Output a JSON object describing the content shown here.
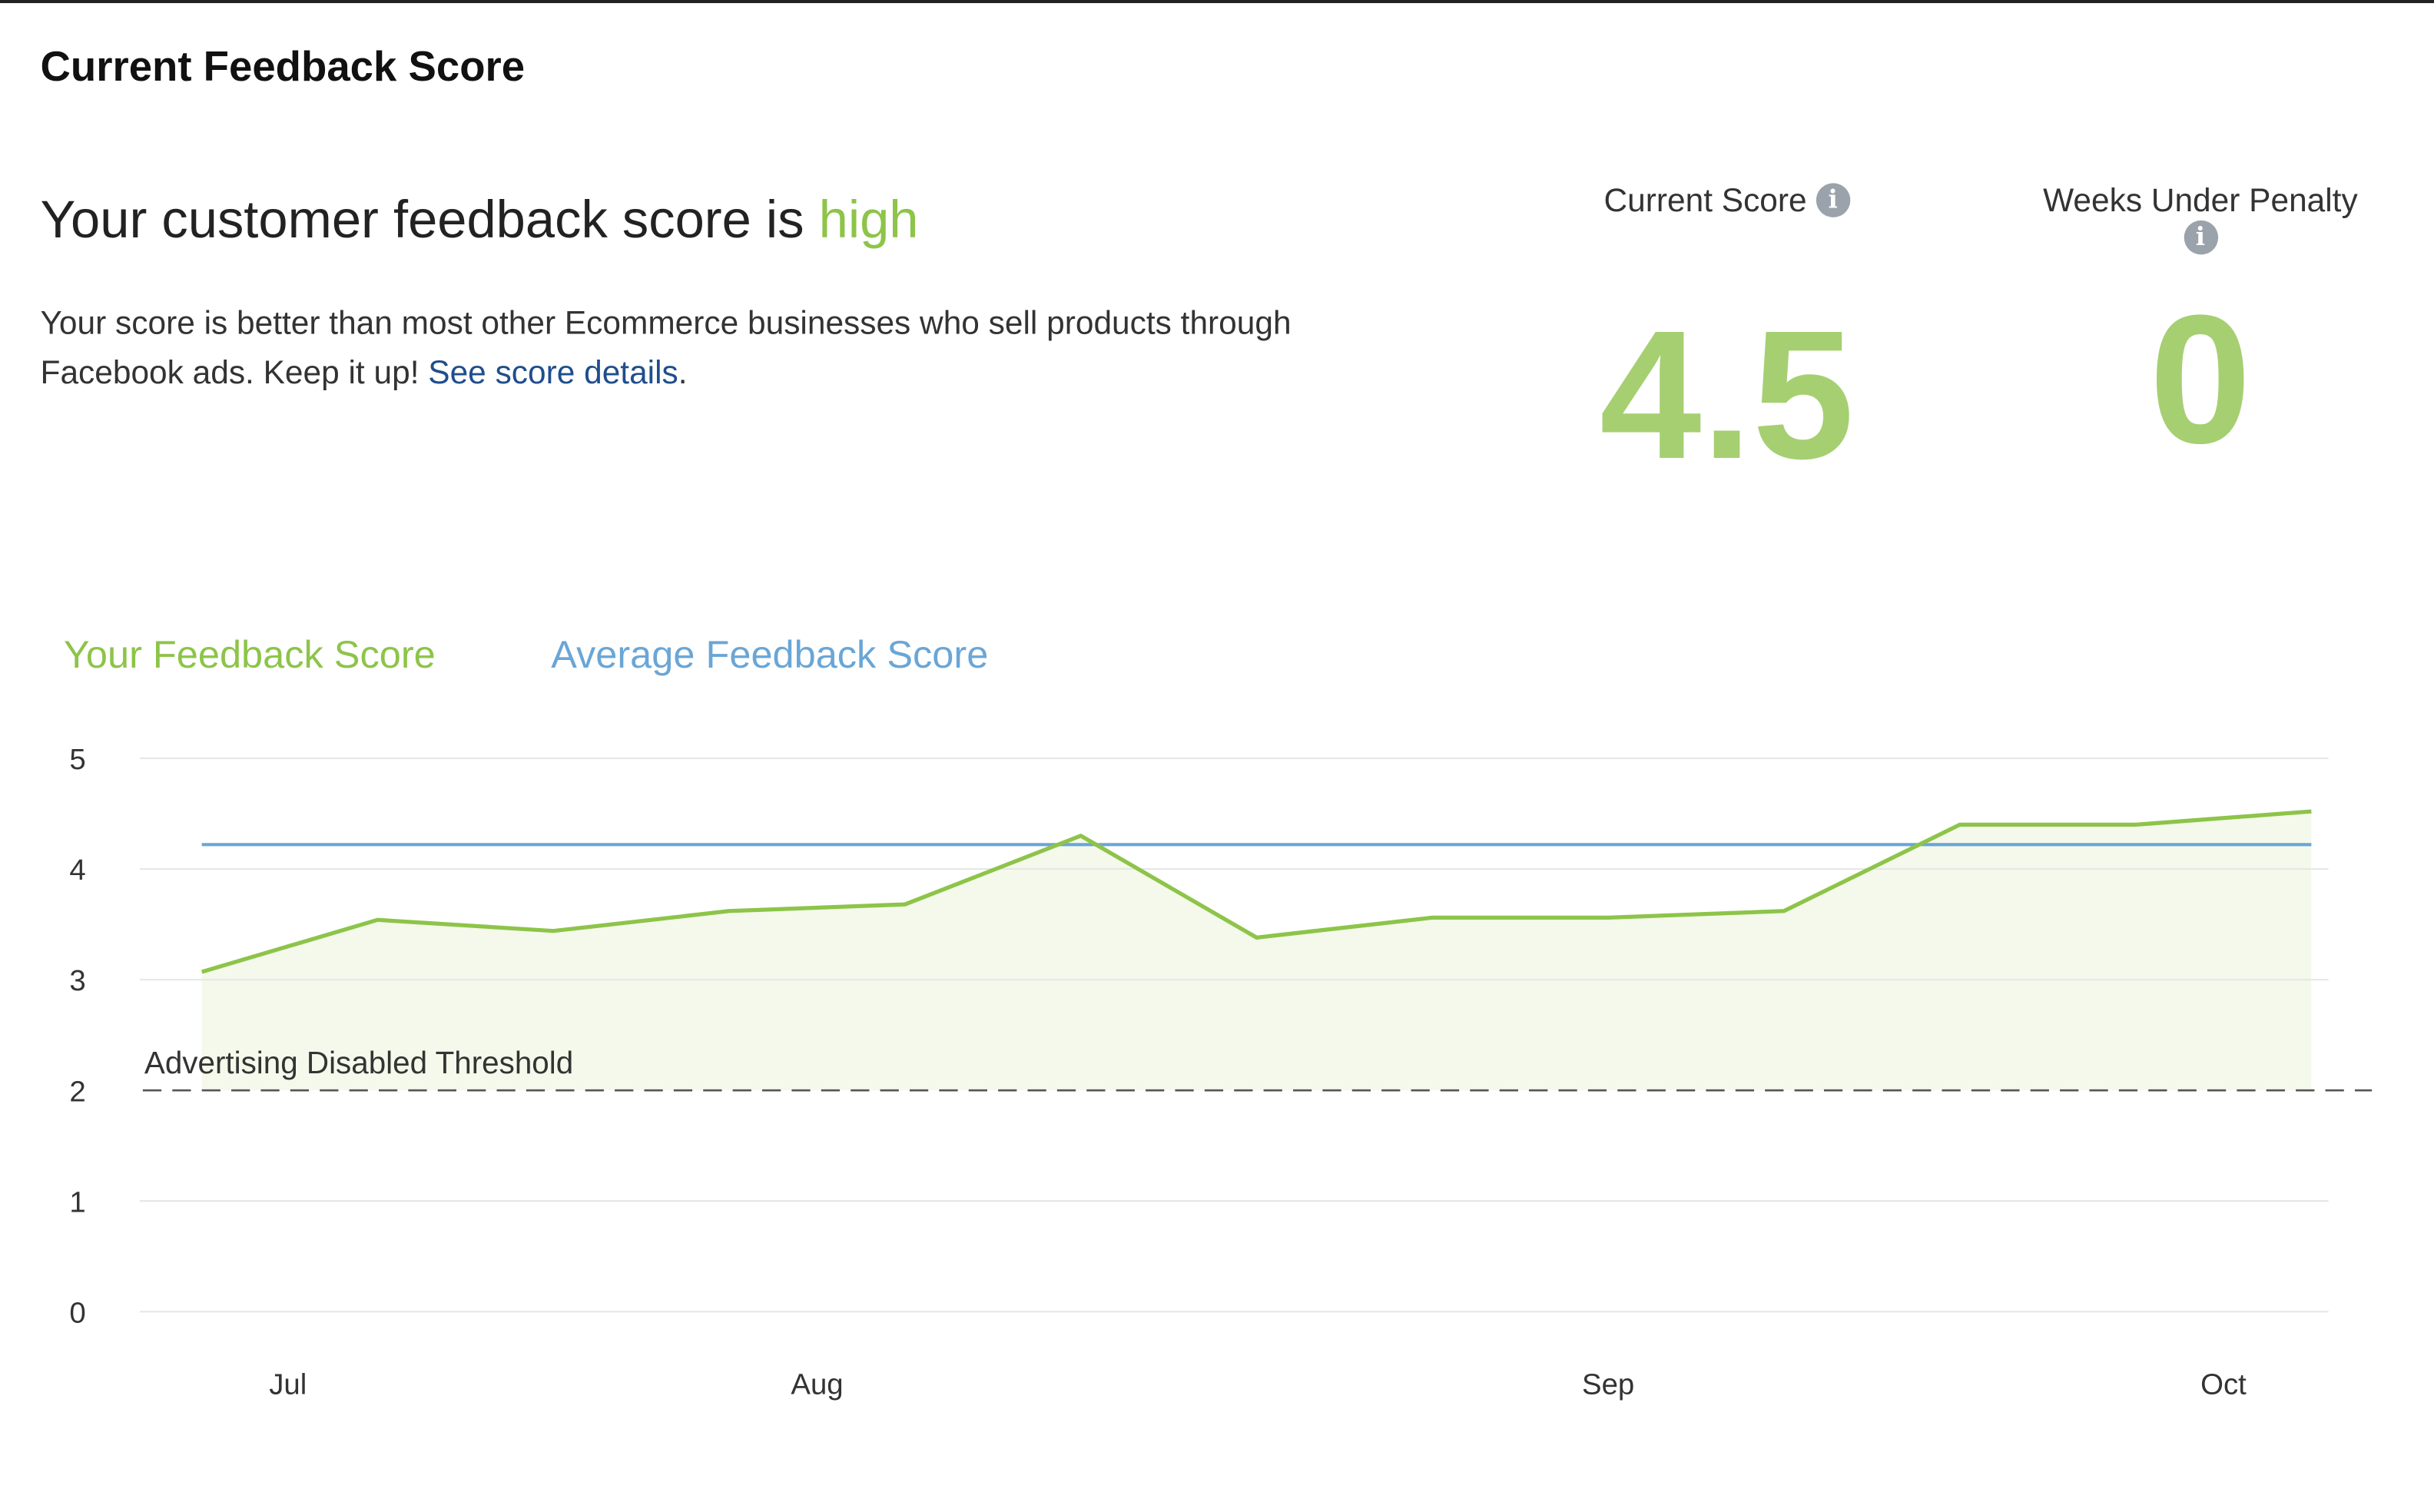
{
  "header": {
    "title": "Current Feedback Score"
  },
  "summary": {
    "headline_prefix": "Your customer feedback score is ",
    "headline_level": "high",
    "description": "Your score is better than most other Ecommerce businesses who sell products through Facebook ads. Keep it up! ",
    "details_link": "See score details",
    "details_suffix": "."
  },
  "stats": {
    "current_score": {
      "label": "Current Score",
      "value": "4.5",
      "icon": "info-icon"
    },
    "weeks_under_penalty": {
      "label": "Weeks Under Penalty",
      "value": "0",
      "icon": "info-icon"
    }
  },
  "colors": {
    "accent": "#8dc449",
    "value": "#a6cf72",
    "average": "#6aa6d6",
    "link": "#1f4e8c"
  },
  "chart_data": {
    "type": "line",
    "ylim": [
      0,
      5
    ],
    "yticks": [
      "0",
      "1",
      "2",
      "3",
      "4",
      "5"
    ],
    "xticks": [
      "Jul",
      "Aug",
      "Sep",
      "Oct"
    ],
    "grid": true,
    "legend_placement": "top-left",
    "series": [
      {
        "name": "Your Feedback Score",
        "color": "#8dc449",
        "values": [
          3.07,
          3.54,
          3.44,
          3.62,
          3.68,
          4.3,
          3.38,
          3.56,
          3.56,
          3.62,
          4.4,
          4.4,
          4.52
        ]
      },
      {
        "name": "Average Feedback Score",
        "color": "#6aa6d6",
        "values": [
          4.22,
          4.22,
          4.22,
          4.22,
          4.22,
          4.22,
          4.22,
          4.22,
          4.22,
          4.22,
          4.22,
          4.22,
          4.22
        ]
      }
    ],
    "threshold": {
      "label": "Advertising Disabled Threshold",
      "value": 2
    }
  }
}
